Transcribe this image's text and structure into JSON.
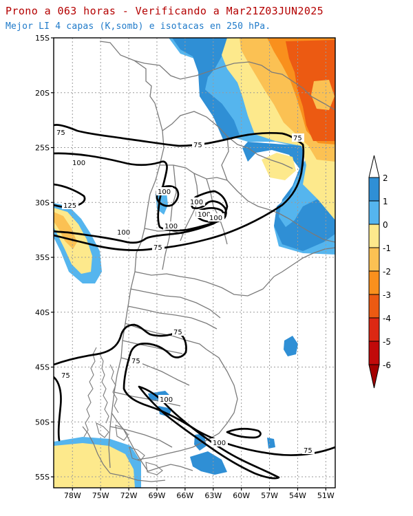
{
  "header": {
    "title": "Prono a 063 horas - Verificando a Mar21Z03JUN2025",
    "subtitle": "Mejor LI 4 capas (K,somb) e isotacas en 250 hPa."
  },
  "map": {
    "region": "South America - Southern Cone",
    "lat_range": [
      -56,
      -15
    ],
    "lon_range": [
      -80,
      -50
    ],
    "lat_labels": [
      "15S",
      "20S",
      "25S",
      "30S",
      "35S",
      "40S",
      "45S",
      "50S",
      "55S"
    ],
    "lon_labels": [
      "78W",
      "75W",
      "72W",
      "69W",
      "66W",
      "63W",
      "60W",
      "57W",
      "54W",
      "51W"
    ],
    "grid": "dotted"
  },
  "isotach_labels": [
    "75",
    "100",
    "125"
  ],
  "colorbar": {
    "levels": [
      "2",
      "1",
      "0",
      "-1",
      "-2",
      "-3",
      "-4",
      "-5",
      "-6"
    ],
    "colors": [
      "#ffffff",
      "#2f8fd5",
      "#55b5ee",
      "#fde98c",
      "#fbc153",
      "#f9901d",
      "#ec5a12",
      "#dc2813",
      "#c10a0a",
      "#a30000"
    ]
  },
  "colors": {
    "title": "#b40000",
    "subtitle": "#1f7ac9",
    "borders": "#7a7a7a",
    "isotachs": "#000000"
  }
}
